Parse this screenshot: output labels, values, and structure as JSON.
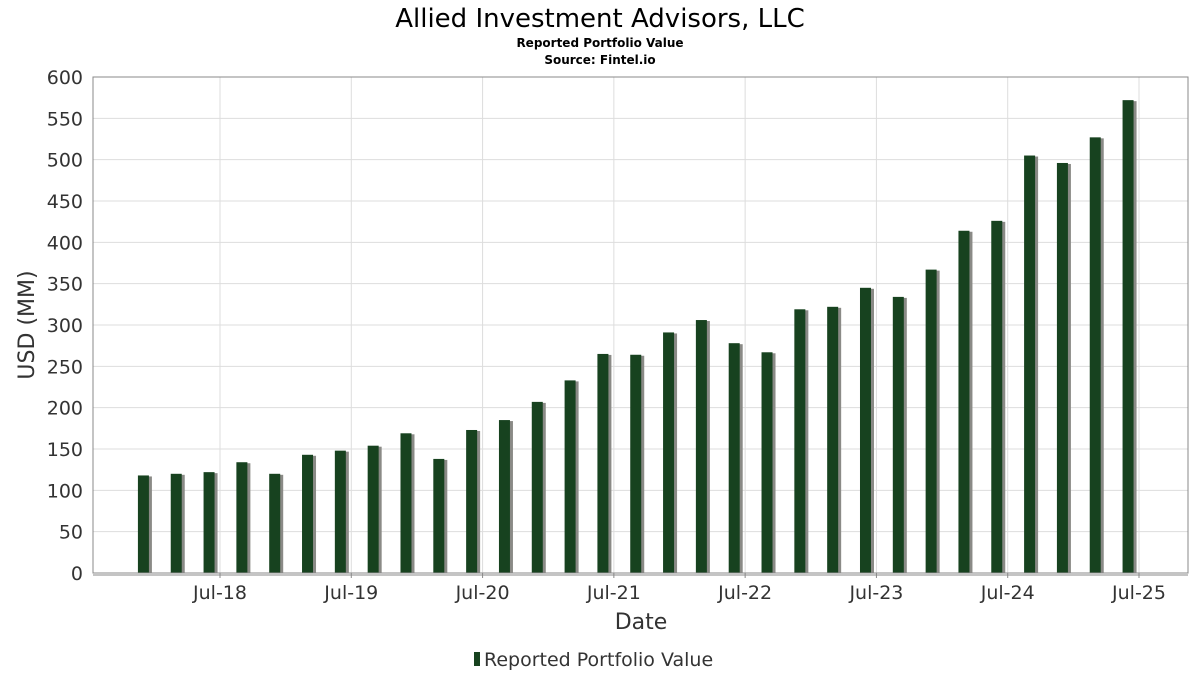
{
  "chart_data": {
    "type": "bar",
    "title": "Allied Investment Advisors, LLC",
    "subtitle": "Reported Portfolio Value",
    "source": "Source: Fintel.io",
    "xlabel": "Date",
    "ylabel": "USD (MM)",
    "ylim": [
      0,
      600
    ],
    "yticks": [
      0,
      50,
      100,
      150,
      200,
      250,
      300,
      350,
      400,
      450,
      500,
      550,
      600
    ],
    "xtick_labels": [
      "Jul-18",
      "Jul-19",
      "Jul-20",
      "Jul-21",
      "Jul-22",
      "Jul-23",
      "Jul-24",
      "Jul-25"
    ],
    "grid": true,
    "legend_position": "bottom-center",
    "colors": {
      "bar": "#17421f",
      "shadow": "#8a8a86",
      "grid": "#dddddd",
      "axis": "#888888"
    },
    "series": [
      {
        "name": "Reported Portfolio Value",
        "x": [
          "2017-12",
          "2018-03",
          "2018-06",
          "2018-09",
          "2018-12",
          "2019-03",
          "2019-06",
          "2019-09",
          "2019-12",
          "2020-03",
          "2020-06",
          "2020-09",
          "2020-12",
          "2021-03",
          "2021-06",
          "2021-09",
          "2021-12",
          "2022-03",
          "2022-06",
          "2022-09",
          "2022-12",
          "2023-03",
          "2023-06",
          "2023-09",
          "2023-12",
          "2024-03",
          "2024-06",
          "2024-09",
          "2024-12",
          "2025-03",
          "2025-06"
        ],
        "values": [
          118,
          120,
          122,
          134,
          120,
          143,
          148,
          154,
          169,
          138,
          173,
          185,
          207,
          233,
          265,
          264,
          291,
          306,
          278,
          267,
          319,
          322,
          345,
          334,
          367,
          414,
          426,
          505,
          496,
          527,
          572
        ]
      }
    ]
  }
}
